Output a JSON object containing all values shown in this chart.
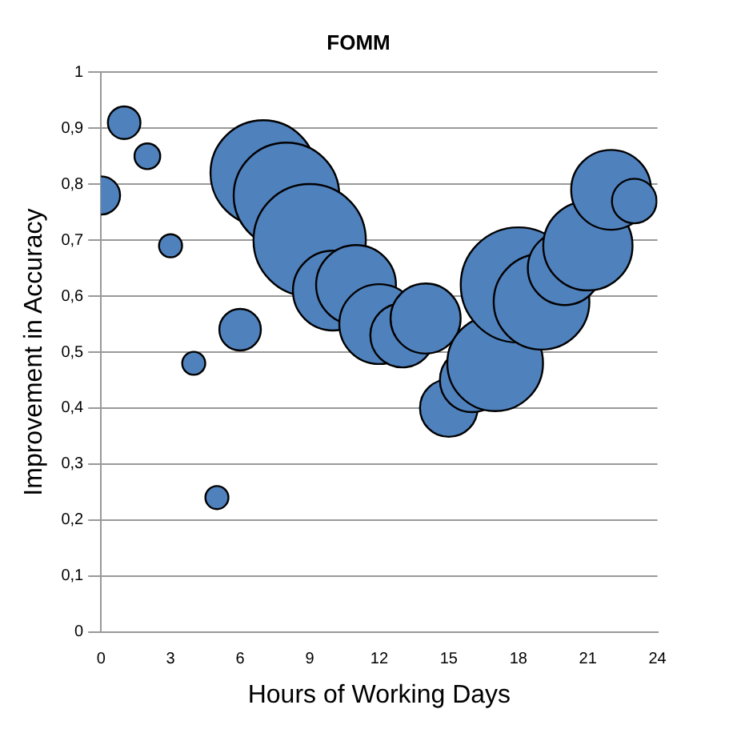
{
  "chart_data": {
    "type": "bubble",
    "title": "FOMM",
    "xlabel": "Hours of Working Days",
    "ylabel": "Improvement in Accuracy",
    "x": [
      0,
      1,
      2,
      3,
      4,
      5,
      6,
      7,
      8,
      9,
      10,
      11,
      12,
      13,
      14,
      15,
      16,
      17,
      18,
      19,
      20,
      21,
      22,
      23
    ],
    "values": [
      0.78,
      0.91,
      0.85,
      0.69,
      0.48,
      0.24,
      0.54,
      0.82,
      0.78,
      0.7,
      0.61,
      0.62,
      0.55,
      0.53,
      0.56,
      0.4,
      0.45,
      0.48,
      0.62,
      0.59,
      0.65,
      0.69,
      0.79,
      0.77
    ],
    "sizes": [
      0.11,
      0.08,
      0.05,
      0.04,
      0.04,
      0.04,
      0.13,
      0.84,
      0.84,
      0.95,
      0.48,
      0.48,
      0.48,
      0.31,
      0.37,
      0.25,
      0.31,
      0.69,
      1,
      0.69,
      0.41,
      0.6,
      0.48,
      0.15
    ],
    "color": "#4f81bd",
    "xlim": [
      0,
      24
    ],
    "xticks": [
      0,
      3,
      6,
      9,
      12,
      15,
      18,
      21,
      24
    ],
    "ylim": [
      0,
      1
    ],
    "yticks": [
      0,
      {
        "value": 0.1,
        "label": "0,1"
      },
      {
        "value": 0.2,
        "label": "0,2"
      },
      {
        "value": 0.3,
        "label": "0,3"
      },
      {
        "value": 0.4,
        "label": "0,4"
      },
      {
        "value": 0.5,
        "label": "0,5"
      },
      {
        "value": 0.6,
        "label": "0,6"
      },
      {
        "value": 0.7,
        "label": "0,7"
      },
      {
        "value": 0.8,
        "label": "0,8"
      },
      {
        "value": 0.9,
        "label": "0,9"
      },
      1
    ],
    "grid": "y",
    "legend": false
  }
}
